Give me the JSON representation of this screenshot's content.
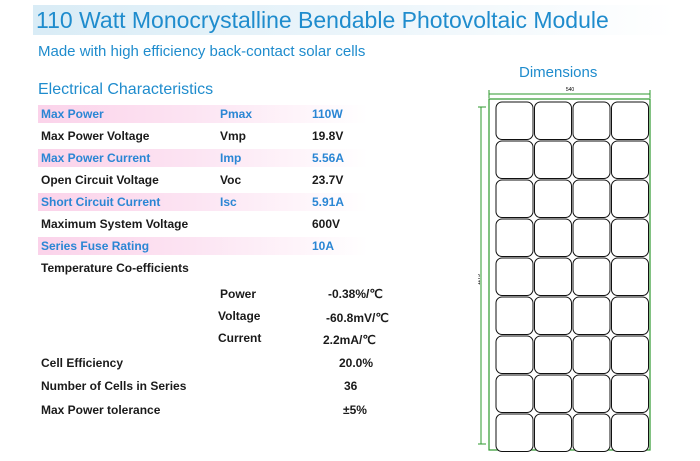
{
  "title": "110 Watt Monocrystalline Bendable Photovoltaic Module",
  "subtitle": "Made with high efficiency back-contact solar cells",
  "section_title": "Electrical Characteristics",
  "dimensions": {
    "title": "Dimensions",
    "width_label": "540",
    "height_label": "1175",
    "cells_columns": 4,
    "cells_rows": 9
  },
  "specs": [
    {
      "label": "Max  Power",
      "symbol": "Pmax",
      "value": "110W",
      "highlight": true
    },
    {
      "label": "Max Power Voltage",
      "symbol": "Vmp",
      "value": "19.8V",
      "highlight": false
    },
    {
      "label": "Max  Power  Current",
      "symbol": "Imp",
      "value": "5.56A",
      "highlight": true
    },
    {
      "label": "Open Circuit Voltage",
      "symbol": "Voc",
      "value": "23.7V",
      "highlight": false
    },
    {
      "label": "Short Circuit Current",
      "symbol": "Isc",
      "value": "5.91A",
      "highlight": true
    },
    {
      "label": "Maximum  System Voltage",
      "symbol": "",
      "value": "600V",
      "highlight": false
    },
    {
      "label": "Series  Fuse  Rating",
      "symbol": "",
      "value": "10A",
      "highlight": true
    }
  ],
  "temp_coeff": {
    "title": "Temperature  Co-efficients",
    "items": [
      {
        "label": "Power",
        "value": "-0.38%/℃"
      },
      {
        "label": "Voltage",
        "value": "-60.8mV/℃"
      },
      {
        "label": "Current",
        "value": "2.2mA/℃"
      }
    ]
  },
  "other": [
    {
      "label": "Cell Efficiency",
      "value": "20.0%"
    },
    {
      "label": "Number  of  Cells  in  Series",
      "value": "36"
    },
    {
      "label": "Max   Power   tolerance",
      "value": "±5%"
    }
  ],
  "colors": {
    "accent": "#1f8ccd",
    "highlight_text": "#2a86d4",
    "highlight_bg": "#fbd3ea",
    "frame": "#2e9a2e"
  }
}
